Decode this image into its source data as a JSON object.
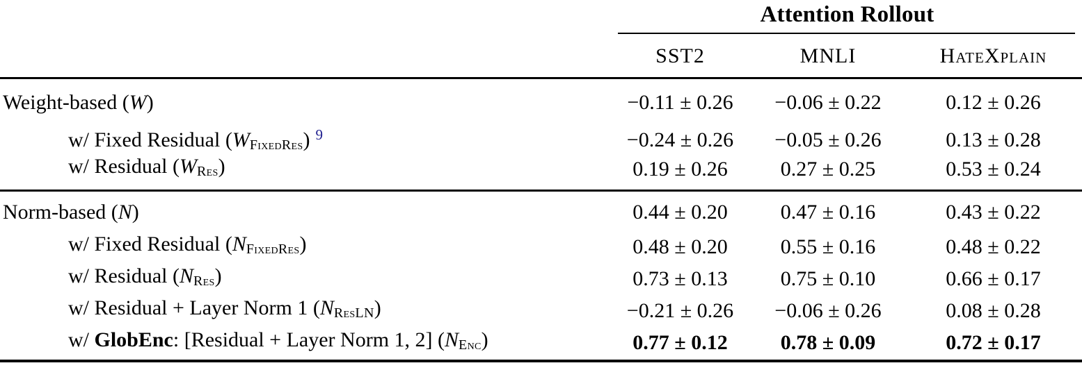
{
  "colors": {
    "text": "#000000",
    "background": "#ffffff",
    "footnote_link": "#1f1f8f"
  },
  "header": {
    "group": "Attention Rollout",
    "columns": [
      "SST2",
      "MNLI",
      "HateXplain"
    ]
  },
  "sections": [
    {
      "rows": [
        {
          "indent": false,
          "bold_values": false,
          "label": [
            {
              "t": "Weight-based (",
              "s": "n"
            },
            {
              "t": "W",
              "s": "m"
            },
            {
              "t": ")",
              "s": "n"
            }
          ],
          "values": [
            "−0.11 ± 0.26",
            "−0.06 ± 0.22",
            "0.12 ± 0.26"
          ]
        },
        {
          "indent": true,
          "bold_values": false,
          "label": [
            {
              "t": "w/ Fixed Residual (",
              "s": "n"
            },
            {
              "t": "W",
              "s": "m"
            },
            {
              "t": "FixedRes",
              "s": "sub"
            },
            {
              "t": ")",
              "s": "n"
            },
            {
              "t": "9",
              "s": "fn"
            }
          ],
          "values": [
            "−0.24 ± 0.26",
            "−0.05 ± 0.26",
            "0.13 ± 0.28"
          ]
        },
        {
          "indent": true,
          "bold_values": false,
          "label": [
            {
              "t": "w/ Residual (",
              "s": "n"
            },
            {
              "t": "W",
              "s": "m"
            },
            {
              "t": "Res",
              "s": "sub"
            },
            {
              "t": ")",
              "s": "n"
            }
          ],
          "values": [
            "0.19 ± 0.26",
            "0.27 ± 0.25",
            "0.53 ± 0.24"
          ]
        }
      ]
    },
    {
      "rows": [
        {
          "indent": false,
          "bold_values": false,
          "label": [
            {
              "t": "Norm-based (",
              "s": "n"
            },
            {
              "t": "N",
              "s": "m"
            },
            {
              "t": ")",
              "s": "n"
            }
          ],
          "values": [
            "0.44 ± 0.20",
            "0.47 ± 0.16",
            "0.43 ± 0.22"
          ]
        },
        {
          "indent": true,
          "bold_values": false,
          "label": [
            {
              "t": "w/ Fixed Residual (",
              "s": "n"
            },
            {
              "t": "N",
              "s": "m"
            },
            {
              "t": "FixedRes",
              "s": "sub"
            },
            {
              "t": ")",
              "s": "n"
            }
          ],
          "values": [
            "0.48 ± 0.20",
            "0.55 ± 0.16",
            "0.48 ± 0.22"
          ]
        },
        {
          "indent": true,
          "bold_values": false,
          "label": [
            {
              "t": "w/ Residual (",
              "s": "n"
            },
            {
              "t": "N",
              "s": "m"
            },
            {
              "t": "Res",
              "s": "sub"
            },
            {
              "t": ")",
              "s": "n"
            }
          ],
          "values": [
            "0.73 ± 0.13",
            "0.75 ± 0.10",
            "0.66 ± 0.17"
          ]
        },
        {
          "indent": true,
          "bold_values": false,
          "label": [
            {
              "t": "w/ Residual + Layer Norm 1 (",
              "s": "n"
            },
            {
              "t": "N",
              "s": "m"
            },
            {
              "t": "ResLN",
              "s": "sub"
            },
            {
              "t": ")",
              "s": "n"
            }
          ],
          "values": [
            "−0.21 ± 0.26",
            "−0.06 ± 0.26",
            "0.08 ± 0.28"
          ]
        },
        {
          "indent": true,
          "bold_values": true,
          "label": [
            {
              "t": "w/ ",
              "s": "n"
            },
            {
              "t": "GlobEnc",
              "s": "b"
            },
            {
              "t": ": [Residual + Layer Norm 1, 2] (",
              "s": "n"
            },
            {
              "t": "N",
              "s": "m"
            },
            {
              "t": "Enc",
              "s": "sub"
            },
            {
              "t": ")",
              "s": "n"
            }
          ],
          "values": [
            "0.77 ± 0.12",
            "0.78 ± 0.09",
            "0.72 ± 0.17"
          ]
        }
      ]
    }
  ]
}
